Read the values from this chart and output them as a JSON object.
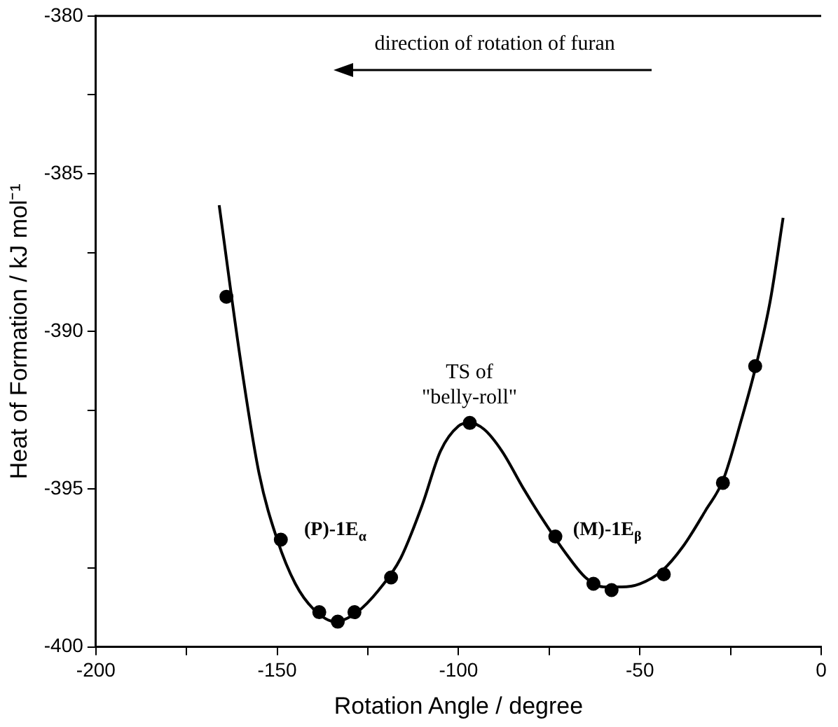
{
  "chart_data": {
    "type": "scatter",
    "xlabel": "Rotation Angle / degree",
    "ylabel": "Heat of Formation / kJ mol⁻¹",
    "xlim": [
      -200,
      0
    ],
    "ylim": [
      -400,
      -380
    ],
    "xticks": [
      -200,
      {
        "value": -175,
        "label": null
      },
      -150,
      {
        "value": -125,
        "label": null
      },
      -100,
      {
        "value": -75,
        "label": null
      },
      -50,
      {
        "value": -25,
        "label": null
      },
      0
    ],
    "yticks": [
      -400,
      {
        "value": -397.5,
        "label": null
      },
      -395,
      {
        "value": -392.5,
        "label": null
      },
      -390,
      {
        "value": -387.5,
        "label": null
      },
      -385,
      {
        "value": -382.5,
        "label": null
      },
      -380
    ],
    "grid": false,
    "legend": false,
    "series": [
      {
        "type": "scatter",
        "color": "#000000",
        "marker": "circle",
        "x": [
          -164,
          -149,
          -138.4,
          -133.3,
          -128.7,
          -118.6,
          -96.9,
          -73.3,
          -62.8,
          -57.8,
          -43.4,
          -27.1,
          -18.2
        ],
        "values": [
          -388.9,
          -396.6,
          -398.9,
          -399.2,
          -398.9,
          -397.8,
          -392.9,
          -396.5,
          -398.0,
          -398.2,
          -397.7,
          -394.8,
          -391.1
        ]
      },
      {
        "type": "line",
        "color": "#000000",
        "marker": "none",
        "line_style": "solid",
        "x": [
          -166,
          -160,
          -155,
          -150,
          -145,
          -140,
          -134,
          -128,
          -122,
          -116,
          -110,
          -105,
          -100,
          -97,
          -93,
          -88,
          -82,
          -76,
          -70,
          -65,
          -60,
          -55,
          -50,
          -44,
          -38,
          -32,
          -27,
          -22,
          -18,
          -14,
          -10.5
        ],
        "values": [
          -386,
          -391,
          -394.5,
          -396.6,
          -398,
          -398.8,
          -399.2,
          -398.9,
          -398.2,
          -397.2,
          -395.5,
          -393.8,
          -393,
          -392.9,
          -393.1,
          -393.8,
          -395,
          -396.1,
          -397.1,
          -397.8,
          -398.1,
          -398.1,
          -398,
          -397.6,
          -396.8,
          -395.7,
          -394.7,
          -392.8,
          -391.1,
          -389,
          -386.4
        ]
      }
    ],
    "annotations": [
      "direction of rotation of furan",
      {
        "text": "TS of\n\"belly-roll\"",
        "x": -97,
        "y": -392.9
      },
      "(P)-1E$_{α}$",
      "(M)-1E$_{β}$"
    ]
  }
}
